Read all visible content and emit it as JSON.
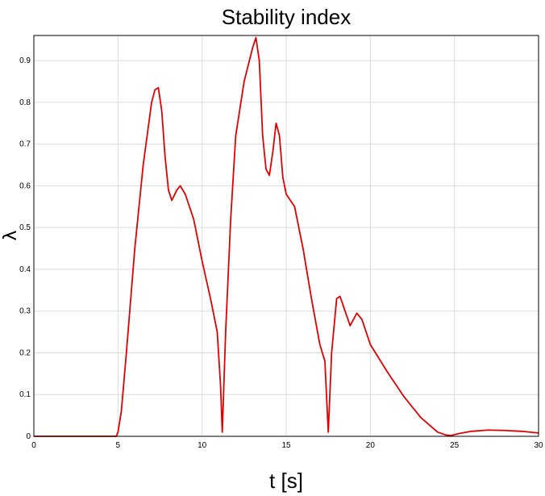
{
  "chart_data": {
    "type": "line",
    "title": "Stability index",
    "xlabel": "t [s]",
    "ylabel": "λ",
    "xlim": [
      0,
      30
    ],
    "ylim": [
      0,
      0.96
    ],
    "xticks": [
      "0",
      "5",
      "10",
      "15",
      "20",
      "25",
      "30"
    ],
    "yticks": [
      "0",
      "0.1",
      "0.2",
      "0.3",
      "0.4",
      "0.5",
      "0.6",
      "0.7",
      "0.8",
      "0.9"
    ],
    "grid": true,
    "colors": {
      "line": "#e00000",
      "grid": "#dcdcdc",
      "axes": "#000000"
    },
    "series": [
      {
        "x": [
          0,
          4.9,
          5.0,
          5.2,
          5.5,
          6.0,
          6.5,
          7.0,
          7.2,
          7.4,
          7.6,
          7.8,
          8.0,
          8.2,
          8.5,
          8.7,
          9.0,
          9.5,
          10.0,
          10.5,
          10.9,
          11.1,
          11.2,
          11.4,
          11.7,
          12.0,
          12.5,
          13.0,
          13.2,
          13.4,
          13.6,
          13.8,
          14.0,
          14.2,
          14.4,
          14.6,
          14.8,
          15.0,
          15.5,
          16.0,
          16.5,
          17.0,
          17.3,
          17.5,
          17.7,
          18.0,
          18.2,
          18.5,
          18.8,
          19.0,
          19.2,
          19.5,
          20.0,
          21.0,
          22.0,
          23.0,
          24.0,
          24.5,
          24.8,
          25.2,
          26.0,
          27.0,
          28.0,
          29.0,
          30.0
        ],
        "y": [
          0,
          0,
          0.01,
          0.06,
          0.2,
          0.45,
          0.65,
          0.8,
          0.83,
          0.835,
          0.78,
          0.67,
          0.59,
          0.565,
          0.59,
          0.6,
          0.58,
          0.52,
          0.42,
          0.33,
          0.25,
          0.12,
          0.01,
          0.25,
          0.52,
          0.72,
          0.85,
          0.93,
          0.955,
          0.9,
          0.72,
          0.64,
          0.625,
          0.68,
          0.75,
          0.72,
          0.62,
          0.58,
          0.55,
          0.45,
          0.33,
          0.22,
          0.18,
          0.01,
          0.2,
          0.33,
          0.335,
          0.3,
          0.265,
          0.28,
          0.295,
          0.28,
          0.22,
          0.155,
          0.095,
          0.045,
          0.01,
          0.003,
          0.002,
          0.006,
          0.012,
          0.015,
          0.014,
          0.012,
          0.008
        ]
      }
    ]
  }
}
